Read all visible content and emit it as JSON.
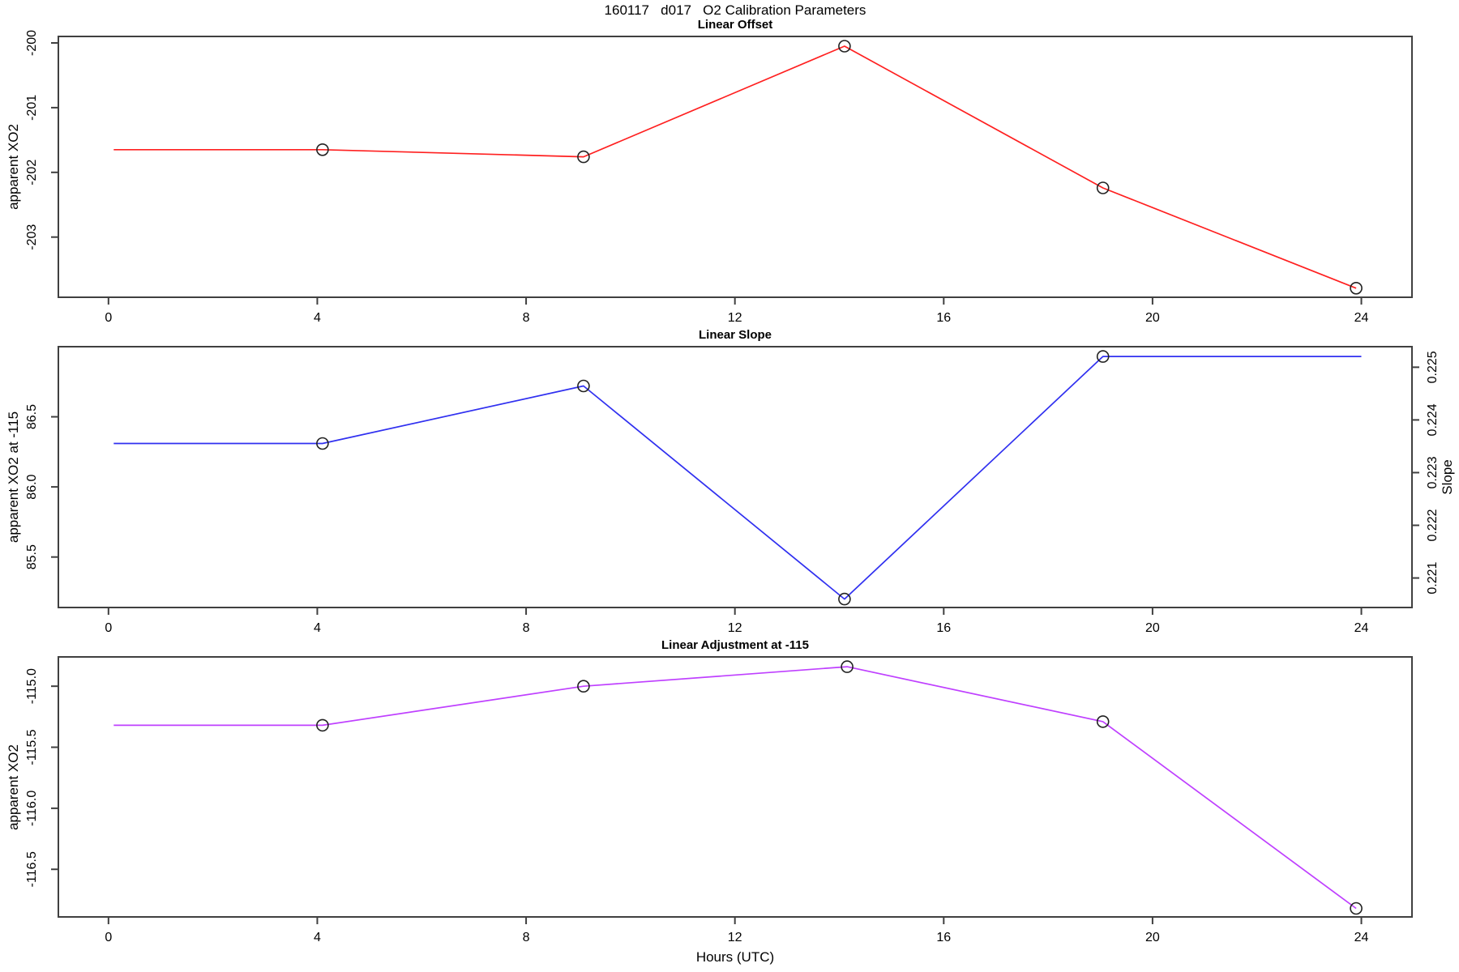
{
  "title": "160117   d017   O2 Calibration Parameters",
  "xlabel": "Hours (UTC)",
  "x_ticks": [
    {
      "v": 0,
      "t": "0"
    },
    {
      "v": 4,
      "t": "4"
    },
    {
      "v": 8,
      "t": "8"
    },
    {
      "v": 12,
      "t": "12"
    },
    {
      "v": 16,
      "t": "16"
    },
    {
      "v": 20,
      "t": "20"
    },
    {
      "v": 24,
      "t": "24"
    }
  ],
  "chart_data": [
    {
      "type": "line",
      "title": "Linear Offset",
      "ylabel": "apparent XO2",
      "color": "#ff2020",
      "marker_color": "#222222",
      "xlim": [
        -0.96,
        24.97
      ],
      "ylim": [
        -203.93,
        -199.9
      ],
      "y_ticks": [
        {
          "v": -203,
          "t": "-203"
        },
        {
          "v": -202,
          "t": "-202"
        },
        {
          "v": -201,
          "t": "-201"
        },
        {
          "v": -200,
          "t": "-200"
        }
      ],
      "line": {
        "x": [
          0.1,
          4.1,
          9.1,
          14.1,
          19.05,
          23.9
        ],
        "y": [
          -201.65,
          -201.65,
          -201.76,
          -200.05,
          -202.24,
          -203.79
        ]
      },
      "points": {
        "x": [
          4.1,
          9.1,
          14.1,
          19.05,
          23.9
        ],
        "y": [
          -201.65,
          -201.76,
          -200.05,
          -202.24,
          -203.79
        ]
      }
    },
    {
      "type": "line",
      "title": "Linear Slope",
      "ylabel": "apparent XO2 at -115",
      "y2label": "Slope",
      "color": "#3030f0",
      "marker_color": "#222222",
      "xlim": [
        -0.96,
        24.97
      ],
      "ylim": [
        85.14,
        87.0
      ],
      "y_ticks": [
        {
          "v": 85.5,
          "t": "85.5"
        },
        {
          "v": 86.0,
          "t": "86.0"
        },
        {
          "v": 86.5,
          "t": "86.5"
        }
      ],
      "y2lim": [
        0.22044,
        0.22539
      ],
      "y2_ticks": [
        {
          "v": 0.221,
          "t": "0.221"
        },
        {
          "v": 0.222,
          "t": "0.222"
        },
        {
          "v": 0.223,
          "t": "0.223"
        },
        {
          "v": 0.224,
          "t": "0.224"
        },
        {
          "v": 0.225,
          "t": "0.225"
        }
      ],
      "line": {
        "x": [
          0.1,
          4.1,
          9.1,
          14.1,
          19.05,
          24.0
        ],
        "y": [
          86.31,
          86.31,
          86.72,
          85.2,
          86.93,
          86.93
        ]
      },
      "points": {
        "x": [
          4.1,
          9.1,
          14.1,
          19.05
        ],
        "y": [
          86.31,
          86.72,
          85.2,
          86.93
        ]
      },
      "slope_values": [
        0.2236,
        0.2247,
        0.2206,
        0.2252
      ]
    },
    {
      "type": "line",
      "title": "Linear Adjustment at -115",
      "ylabel": "apparent XO2",
      "color": "#bf40ff",
      "marker_color": "#222222",
      "xlim": [
        -0.96,
        24.97
      ],
      "ylim": [
        -116.89,
        -114.76
      ],
      "y_ticks": [
        {
          "v": -116.5,
          "t": "-116.5"
        },
        {
          "v": -116.0,
          "t": "-116.0"
        },
        {
          "v": -115.5,
          "t": "-115.5"
        },
        {
          "v": -115.0,
          "t": "-115.0"
        }
      ],
      "line": {
        "x": [
          0.1,
          4.1,
          9.1,
          14.15,
          19.05,
          23.9
        ],
        "y": [
          -115.32,
          -115.32,
          -115.0,
          -114.84,
          -115.29,
          -116.82
        ]
      },
      "points": {
        "x": [
          4.1,
          9.1,
          14.15,
          19.05,
          23.9
        ],
        "y": [
          -115.32,
          -115.0,
          -114.84,
          -115.29,
          -116.82
        ]
      }
    }
  ]
}
